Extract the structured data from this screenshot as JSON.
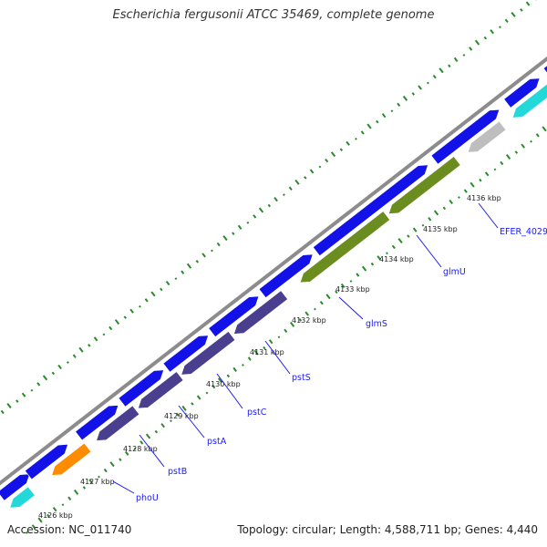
{
  "title": "Escherichia fergusonii ATCC 35469, complete genome",
  "footer": {
    "accession": "Accession: NC_011740",
    "stats": "Topology: circular; Length: 4,588,711 bp; Genes: 4,440"
  },
  "colors": {
    "backbone": "#8c8c8c",
    "forward": "#1212e8",
    "reverse_pst": "#4a3f8f",
    "reverse_glm": "#6b8c1f",
    "orange": "#ff8c00",
    "gray": "#bebebe",
    "cyan": "#22d8d8",
    "ticks": "#2b8a2b",
    "label": "#1a1aff"
  },
  "ruler": {
    "ticks": [
      "4126 kbp",
      "4127 kbp",
      "4128 kbp",
      "4129 kbp",
      "4130 kbp",
      "4131 kbp",
      "4132 kbp",
      "4133 kbp",
      "4134 kbp",
      "4135 kbp",
      "4136 kbp"
    ]
  },
  "gene_labels": [
    "phoU",
    "pstB",
    "pstA",
    "pstC",
    "pstS",
    "glmS",
    "glmU",
    "EFER_4029"
  ]
}
